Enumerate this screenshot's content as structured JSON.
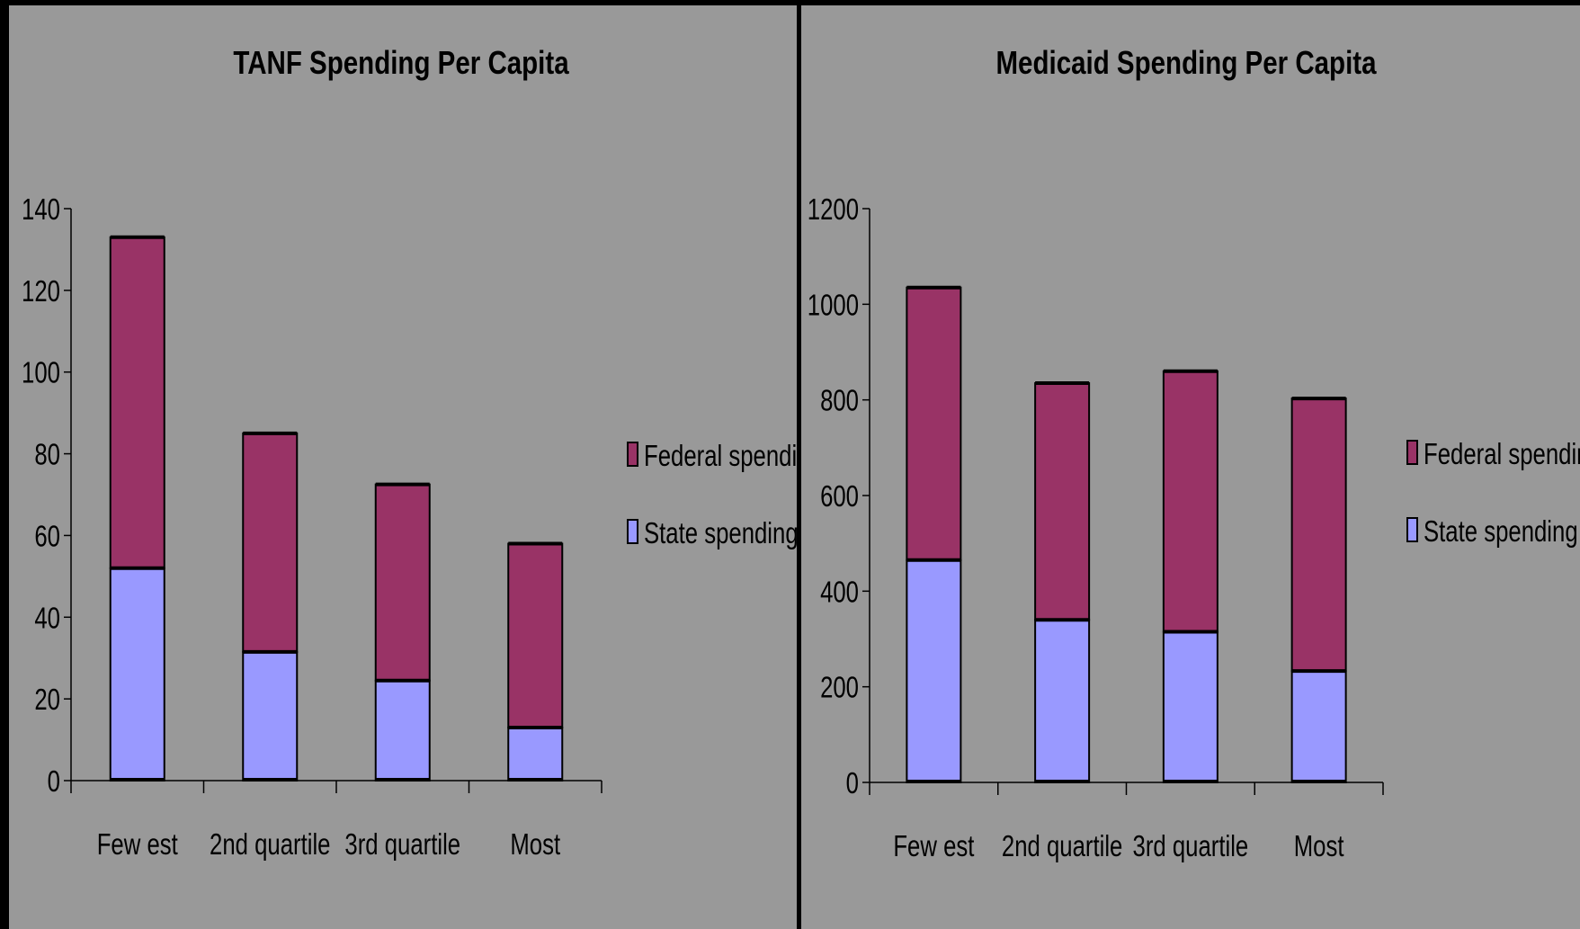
{
  "chart_data": [
    {
      "type": "bar",
      "stacked": true,
      "title": "TANF Spending Per Capita",
      "xlabel": "",
      "ylabel": "",
      "categories": [
        "Few est",
        "2nd quartile",
        "3rd quartile",
        "Most"
      ],
      "ylim": [
        0,
        140
      ],
      "yticks": [
        "0",
        "20",
        "40",
        "60",
        "80",
        "100",
        "120",
        "140"
      ],
      "grid": false,
      "legend_position": "right",
      "series": [
        {
          "name": "State spending",
          "color": "#9999ff",
          "values": [
            52,
            31.5,
            24.5,
            13
          ]
        },
        {
          "name": "Federal spending",
          "color": "#993366",
          "values": [
            81,
            53.5,
            48,
            45
          ]
        }
      ],
      "legend": [
        "Federal spending",
        "State spending"
      ]
    },
    {
      "type": "bar",
      "stacked": true,
      "title": "Medicaid Spending Per Capita",
      "xlabel": "",
      "ylabel": "",
      "categories": [
        "Few est",
        "2nd quartile",
        "3rd quartile",
        "Most"
      ],
      "ylim": [
        0,
        1200
      ],
      "yticks": [
        "0",
        "200",
        "400",
        "600",
        "800",
        "1000",
        "1200"
      ],
      "grid": false,
      "legend_position": "right",
      "series": [
        {
          "name": "State spending",
          "color": "#9999ff",
          "values": [
            465,
            340,
            315,
            233
          ]
        },
        {
          "name": "Federal spending",
          "color": "#993366",
          "values": [
            570,
            495,
            545,
            570
          ]
        }
      ],
      "legend": [
        "Federal spending",
        "State spending"
      ]
    }
  ]
}
